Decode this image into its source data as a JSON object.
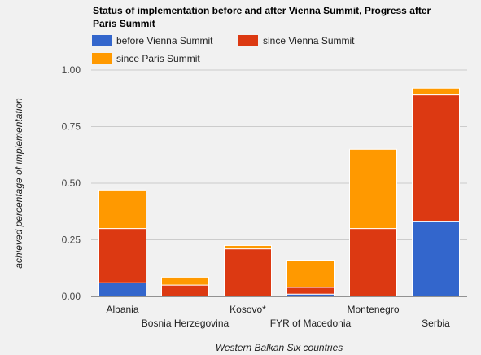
{
  "chart_data": {
    "type": "bar",
    "stacked": true,
    "title": "Status of implementation before and after Vienna Summit, Progress after Paris Summit",
    "title_lines": [
      "Status of implementation before and after Vienna Summit, Progress after",
      "Paris Summit"
    ],
    "xlabel": "Western Balkan Six countries",
    "ylabel": "achieved percentage of implementation",
    "ylim": [
      0,
      1
    ],
    "yticks": [
      "0.00",
      "0.25",
      "0.50",
      "0.75",
      "1.00"
    ],
    "grid": true,
    "legend_position": "top",
    "categories": [
      "Albania",
      "Bosnia Herzegovina",
      "Kosovo*",
      "FYR of Macedonia",
      "Montenegro",
      "Serbia"
    ],
    "series": [
      {
        "name": "before Vienna Summit",
        "color": "#3366cc",
        "values": [
          0.06,
          0.0,
          0.0,
          0.01,
          0.0,
          0.33
        ]
      },
      {
        "name": "since Vienna Summit",
        "color": "#dc3912",
        "values": [
          0.24,
          0.05,
          0.21,
          0.03,
          0.3,
          0.56
        ]
      },
      {
        "name": "since Paris Summit",
        "color": "#ff9900",
        "values": [
          0.17,
          0.035,
          0.015,
          0.12,
          0.35,
          0.03
        ]
      }
    ]
  }
}
